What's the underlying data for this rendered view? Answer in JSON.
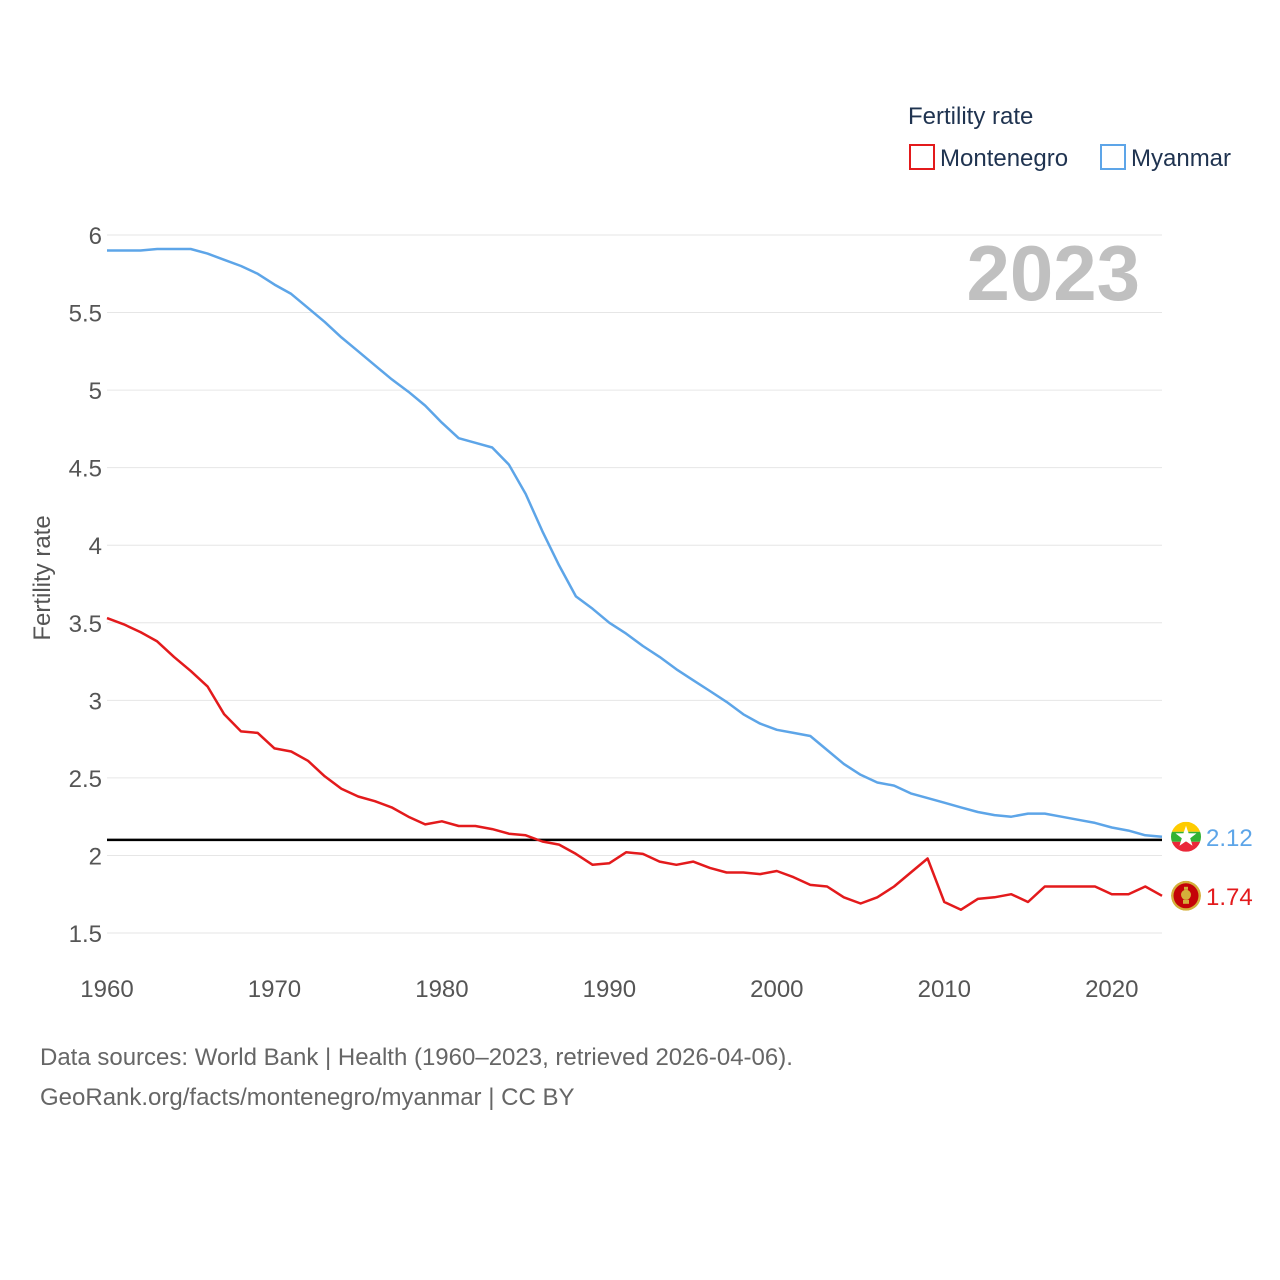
{
  "chart_data": {
    "type": "line",
    "title": "",
    "xlabel": "",
    "ylabel": "Fertility rate",
    "legend_title": "Fertility rate",
    "legend_position": "top-right",
    "year_display": "2023",
    "xlim": [
      1960,
      2023
    ],
    "ylim": [
      1.5,
      6
    ],
    "x_ticks": [
      1960,
      1970,
      1980,
      1990,
      2000,
      2010,
      2020
    ],
    "y_ticks": [
      1.5,
      2,
      2.5,
      3,
      3.5,
      4,
      4.5,
      5,
      5.5,
      6
    ],
    "x": [
      1960,
      1961,
      1962,
      1963,
      1964,
      1965,
      1966,
      1967,
      1968,
      1969,
      1970,
      1971,
      1972,
      1973,
      1974,
      1975,
      1976,
      1977,
      1978,
      1979,
      1980,
      1981,
      1982,
      1983,
      1984,
      1985,
      1986,
      1987,
      1988,
      1989,
      1990,
      1991,
      1992,
      1993,
      1994,
      1995,
      1996,
      1997,
      1998,
      1999,
      2000,
      2001,
      2002,
      2003,
      2004,
      2005,
      2006,
      2007,
      2008,
      2009,
      2010,
      2011,
      2012,
      2013,
      2014,
      2015,
      2016,
      2017,
      2018,
      2019,
      2020,
      2021,
      2022,
      2023
    ],
    "reference_line": {
      "value": 2.1,
      "color": "#000000"
    },
    "series": [
      {
        "name": "Montenegro",
        "color": "#e31a1c",
        "end_label": "1.74",
        "flag_icon": "montenegro-flag-icon",
        "values": [
          3.53,
          3.49,
          3.44,
          3.38,
          3.28,
          3.19,
          3.09,
          2.91,
          2.8,
          2.79,
          2.69,
          2.67,
          2.61,
          2.51,
          2.43,
          2.38,
          2.35,
          2.31,
          2.25,
          2.2,
          2.22,
          2.19,
          2.19,
          2.17,
          2.14,
          2.13,
          2.09,
          2.07,
          2.01,
          1.94,
          1.95,
          2.02,
          2.01,
          1.96,
          1.94,
          1.96,
          1.92,
          1.89,
          1.89,
          1.88,
          1.9,
          1.86,
          1.81,
          1.8,
          1.73,
          1.69,
          1.73,
          1.8,
          1.89,
          1.98,
          1.7,
          1.65,
          1.72,
          1.73,
          1.75,
          1.7,
          1.8,
          1.8,
          1.8,
          1.8,
          1.75,
          1.75,
          1.8,
          1.74
        ]
      },
      {
        "name": "Myanmar",
        "color": "#5da5e8",
        "end_label": "2.12",
        "flag_icon": "myanmar-flag-icon",
        "values": [
          5.9,
          5.9,
          5.9,
          5.91,
          5.91,
          5.91,
          5.88,
          5.84,
          5.8,
          5.75,
          5.68,
          5.62,
          5.53,
          5.44,
          5.34,
          5.25,
          5.16,
          5.07,
          4.99,
          4.9,
          4.79,
          4.69,
          4.66,
          4.63,
          4.52,
          4.33,
          4.09,
          3.87,
          3.67,
          3.59,
          3.5,
          3.43,
          3.35,
          3.28,
          3.2,
          3.13,
          3.06,
          2.99,
          2.91,
          2.85,
          2.81,
          2.79,
          2.77,
          2.68,
          2.59,
          2.52,
          2.47,
          2.45,
          2.4,
          2.37,
          2.34,
          2.31,
          2.28,
          2.26,
          2.25,
          2.27,
          2.27,
          2.25,
          2.23,
          2.21,
          2.18,
          2.16,
          2.13,
          2.12
        ]
      }
    ]
  },
  "footer": {
    "line1": "Data sources: World Bank | Health (1960–2023, retrieved 2026-04-06).",
    "line2": "GeoRank.org/facts/montenegro/myanmar | CC BY"
  },
  "colors": {
    "grid": "#e6e6e6",
    "tick_text": "#555555",
    "legend_text": "#1f3350",
    "watermark": "#c0c0c0"
  }
}
